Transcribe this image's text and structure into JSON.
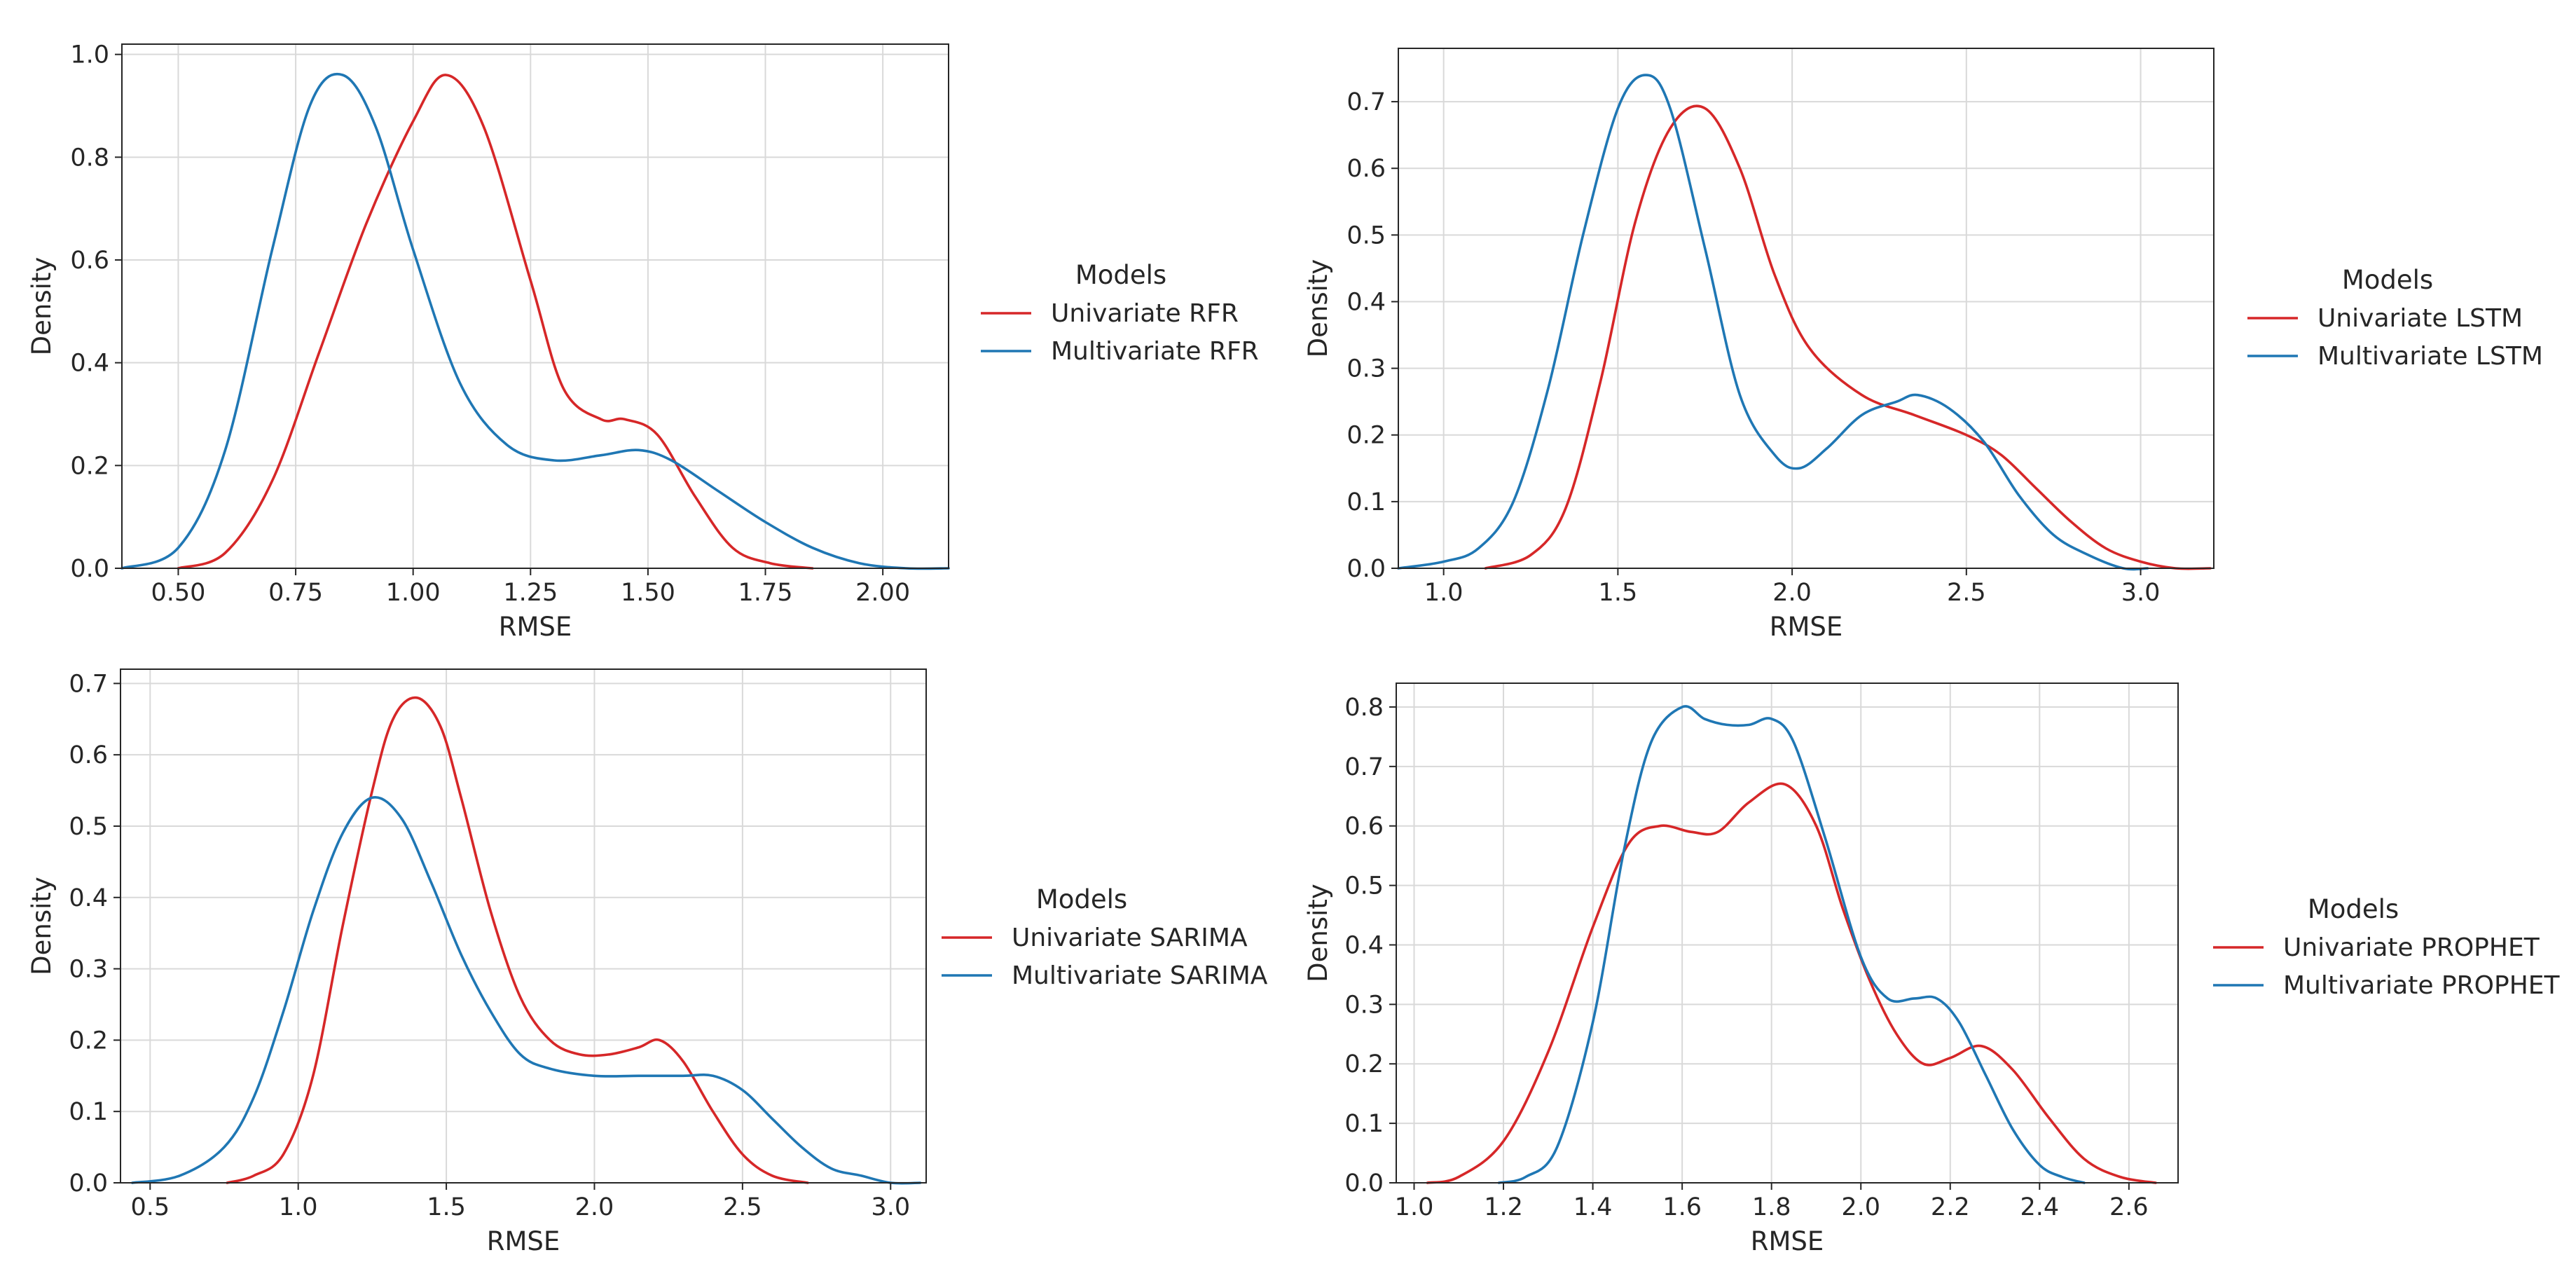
{
  "chart_data": [
    {
      "type": "line",
      "subtype": "kde",
      "xlabel": "RMSE",
      "ylabel": "Density",
      "xlim": [
        0.38,
        2.14
      ],
      "ylim": [
        0,
        1.02
      ],
      "xticks": [
        "0.50",
        "0.75",
        "1.00",
        "1.25",
        "1.50",
        "1.75",
        "2.00"
      ],
      "yticks": [
        "0.0",
        "0.2",
        "0.4",
        "0.6",
        "0.8",
        "1.0"
      ],
      "grid": true,
      "legend": {
        "title": "Models",
        "placement": "right"
      },
      "series": [
        {
          "name": "Univariate RFR",
          "color": "#d62728",
          "x": [
            0.5,
            0.6,
            0.7,
            0.8,
            0.9,
            1.0,
            1.07,
            1.15,
            1.25,
            1.32,
            1.4,
            1.45,
            1.52,
            1.6,
            1.68,
            1.76,
            1.85
          ],
          "y": [
            0.0,
            0.03,
            0.17,
            0.42,
            0.67,
            0.87,
            0.96,
            0.86,
            0.56,
            0.35,
            0.29,
            0.29,
            0.26,
            0.14,
            0.04,
            0.01,
            0.0
          ]
        },
        {
          "name": "Multivariate RFR",
          "color": "#1f77b4",
          "x": [
            0.38,
            0.5,
            0.6,
            0.7,
            0.78,
            0.85,
            0.92,
            1.0,
            1.1,
            1.2,
            1.3,
            1.4,
            1.48,
            1.55,
            1.65,
            1.75,
            1.85,
            1.95,
            2.05,
            2.14
          ],
          "y": [
            0.0,
            0.04,
            0.23,
            0.62,
            0.9,
            0.96,
            0.86,
            0.62,
            0.36,
            0.24,
            0.21,
            0.22,
            0.23,
            0.21,
            0.15,
            0.09,
            0.04,
            0.01,
            0.0,
            0.0
          ]
        }
      ]
    },
    {
      "type": "line",
      "subtype": "kde",
      "xlabel": "RMSE",
      "ylabel": "Density",
      "xlim": [
        0.87,
        3.21
      ],
      "ylim": [
        0,
        0.78
      ],
      "xticks": [
        "1.0",
        "1.5",
        "2.0",
        "2.5",
        "3.0"
      ],
      "yticks": [
        "0.0",
        "0.1",
        "0.2",
        "0.3",
        "0.4",
        "0.5",
        "0.6",
        "0.7"
      ],
      "grid": true,
      "legend": {
        "title": "Models",
        "placement": "right"
      },
      "series": [
        {
          "name": "Univariate LSTM",
          "color": "#d62728",
          "x": [
            1.12,
            1.25,
            1.35,
            1.45,
            1.55,
            1.65,
            1.75,
            1.85,
            1.95,
            2.05,
            2.2,
            2.35,
            2.5,
            2.6,
            2.7,
            2.8,
            2.9,
            3.0,
            3.1,
            3.2
          ],
          "y": [
            0.0,
            0.02,
            0.09,
            0.28,
            0.52,
            0.66,
            0.69,
            0.6,
            0.44,
            0.33,
            0.26,
            0.23,
            0.2,
            0.17,
            0.12,
            0.07,
            0.03,
            0.01,
            0.0,
            0.0
          ]
        },
        {
          "name": "Multivariate LSTM",
          "color": "#1f77b4",
          "x": [
            0.87,
            1.0,
            1.1,
            1.2,
            1.3,
            1.4,
            1.5,
            1.58,
            1.65,
            1.75,
            1.85,
            1.95,
            2.02,
            2.1,
            2.2,
            2.3,
            2.36,
            2.45,
            2.55,
            2.65,
            2.75,
            2.85,
            2.95,
            3.02
          ],
          "y": [
            0.0,
            0.01,
            0.03,
            0.1,
            0.27,
            0.5,
            0.69,
            0.74,
            0.69,
            0.48,
            0.26,
            0.17,
            0.15,
            0.18,
            0.23,
            0.25,
            0.26,
            0.24,
            0.19,
            0.11,
            0.05,
            0.02,
            0.0,
            0.0
          ]
        }
      ]
    },
    {
      "type": "line",
      "subtype": "kde",
      "xlabel": "RMSE",
      "ylabel": "Density",
      "xlim": [
        0.4,
        3.12
      ],
      "ylim": [
        0,
        0.72
      ],
      "xticks": [
        "0.5",
        "1.0",
        "1.5",
        "2.0",
        "2.5",
        "3.0"
      ],
      "yticks": [
        "0.0",
        "0.1",
        "0.2",
        "0.3",
        "0.4",
        "0.5",
        "0.6",
        "0.7"
      ],
      "grid": true,
      "legend": {
        "title": "Models",
        "placement": "right"
      },
      "series": [
        {
          "name": "Univariate SARIMA",
          "color": "#d62728",
          "x": [
            0.76,
            0.85,
            0.95,
            1.05,
            1.15,
            1.25,
            1.32,
            1.4,
            1.48,
            1.55,
            1.65,
            1.75,
            1.85,
            1.95,
            2.05,
            2.15,
            2.22,
            2.3,
            2.4,
            2.5,
            2.6,
            2.72
          ],
          "y": [
            0.0,
            0.01,
            0.04,
            0.15,
            0.36,
            0.55,
            0.65,
            0.68,
            0.64,
            0.54,
            0.38,
            0.26,
            0.2,
            0.18,
            0.18,
            0.19,
            0.2,
            0.17,
            0.1,
            0.04,
            0.01,
            0.0
          ]
        },
        {
          "name": "Multivariate SARIMA",
          "color": "#1f77b4",
          "x": [
            0.44,
            0.6,
            0.75,
            0.85,
            0.95,
            1.05,
            1.15,
            1.25,
            1.35,
            1.45,
            1.55,
            1.65,
            1.75,
            1.85,
            2.0,
            2.15,
            2.3,
            2.4,
            2.5,
            2.6,
            2.7,
            2.8,
            2.9,
            3.0,
            3.1
          ],
          "y": [
            0.0,
            0.01,
            0.05,
            0.12,
            0.24,
            0.38,
            0.49,
            0.54,
            0.51,
            0.42,
            0.32,
            0.24,
            0.18,
            0.16,
            0.15,
            0.15,
            0.15,
            0.15,
            0.13,
            0.09,
            0.05,
            0.02,
            0.01,
            0.0,
            0.0
          ]
        }
      ]
    },
    {
      "type": "line",
      "subtype": "kde",
      "xlabel": "RMSE",
      "ylabel": "Density",
      "xlim": [
        0.96,
        2.71
      ],
      "ylim": [
        0,
        0.84
      ],
      "xticks": [
        "1.0",
        "1.2",
        "1.4",
        "1.6",
        "1.8",
        "2.0",
        "2.2",
        "2.4",
        "2.6"
      ],
      "yticks": [
        "0.0",
        "0.1",
        "0.2",
        "0.3",
        "0.4",
        "0.5",
        "0.6",
        "0.7",
        "0.8"
      ],
      "grid": true,
      "legend": {
        "title": "Models",
        "placement": "right"
      },
      "series": [
        {
          "name": "Univariate PROPHET",
          "color": "#d62728",
          "x": [
            1.03,
            1.1,
            1.2,
            1.3,
            1.4,
            1.48,
            1.55,
            1.62,
            1.68,
            1.75,
            1.83,
            1.9,
            1.96,
            2.02,
            2.08,
            2.14,
            2.2,
            2.27,
            2.34,
            2.42,
            2.5,
            2.58,
            2.66
          ],
          "y": [
            0.0,
            0.01,
            0.07,
            0.22,
            0.43,
            0.57,
            0.6,
            0.59,
            0.59,
            0.64,
            0.67,
            0.6,
            0.46,
            0.34,
            0.25,
            0.2,
            0.21,
            0.23,
            0.19,
            0.11,
            0.04,
            0.01,
            0.0
          ]
        },
        {
          "name": "Multivariate PROPHET",
          "color": "#1f77b4",
          "x": [
            1.19,
            1.25,
            1.32,
            1.4,
            1.47,
            1.53,
            1.6,
            1.65,
            1.7,
            1.75,
            1.8,
            1.85,
            1.92,
            2.0,
            2.06,
            2.12,
            2.17,
            2.22,
            2.28,
            2.34,
            2.4,
            2.45,
            2.5
          ],
          "y": [
            0.0,
            0.01,
            0.06,
            0.27,
            0.56,
            0.74,
            0.8,
            0.78,
            0.77,
            0.77,
            0.78,
            0.74,
            0.58,
            0.38,
            0.31,
            0.31,
            0.31,
            0.27,
            0.18,
            0.09,
            0.03,
            0.01,
            0.0
          ]
        }
      ]
    }
  ]
}
